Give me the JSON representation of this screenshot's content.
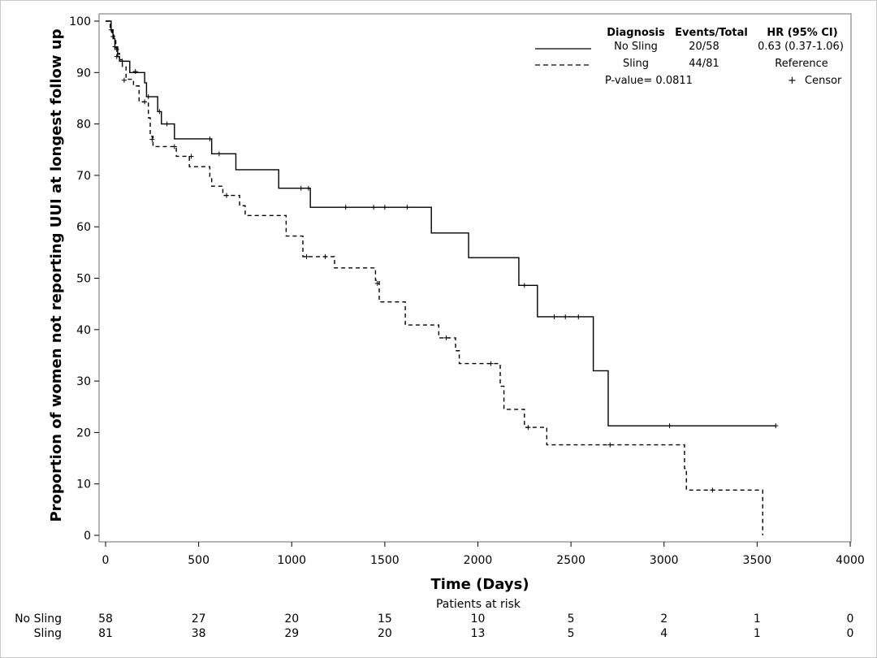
{
  "chart_data": {
    "type": "line",
    "subtype": "kaplan-meier step",
    "xlabel": "Time (Days)",
    "ylabel": "Proportion of women not reporting UUI at longest follow up",
    "xlim": [
      0,
      4000
    ],
    "ylim": [
      0,
      100
    ],
    "xticks": [
      0,
      500,
      1000,
      1500,
      2000,
      2500,
      3000,
      3500,
      4000
    ],
    "yticks": [
      0,
      10,
      20,
      30,
      40,
      50,
      60,
      70,
      80,
      90,
      100
    ],
    "grid": false,
    "legend": {
      "placement": "top-right",
      "headers": {
        "diagnosis": "Diagnosis",
        "events": "Events/Total",
        "hr": "HR (95% CI)"
      },
      "rows": [
        {
          "diagnosis": "No Sling",
          "events": "20/58",
          "hr": "0.63 (0.37-1.06)",
          "style": "solid"
        },
        {
          "diagnosis": "Sling",
          "events": "44/81",
          "hr": "Reference",
          "style": "dashed"
        }
      ],
      "pvalue": "P-value= 0.0811",
      "censor_symbol": "+",
      "censor_label": "Censor"
    },
    "series": [
      {
        "name": "No Sling",
        "style": "solid",
        "steps": [
          [
            0,
            100
          ],
          [
            30,
            98.3
          ],
          [
            40,
            96.6
          ],
          [
            50,
            94.8
          ],
          [
            65,
            93.1
          ],
          [
            75,
            92.2
          ],
          [
            130,
            90
          ],
          [
            210,
            88
          ],
          [
            220,
            85.3
          ],
          [
            280,
            82.4
          ],
          [
            300,
            80
          ],
          [
            370,
            77.1
          ],
          [
            570,
            74.2
          ],
          [
            700,
            71.1
          ],
          [
            930,
            67.5
          ],
          [
            1100,
            63.8
          ],
          [
            1750,
            58.8
          ],
          [
            1950,
            54
          ],
          [
            2220,
            48.6
          ],
          [
            2320,
            42.5
          ],
          [
            2620,
            32
          ],
          [
            2700,
            21.3
          ],
          [
            3600,
            21.3
          ]
        ],
        "censored": [
          [
            30,
            98.3
          ],
          [
            50,
            95
          ],
          [
            60,
            93.1
          ],
          [
            90,
            92.2
          ],
          [
            160,
            90.2
          ],
          [
            230,
            85.3
          ],
          [
            290,
            82.4
          ],
          [
            330,
            80
          ],
          [
            560,
            77.1
          ],
          [
            610,
            74.2
          ],
          [
            1050,
            67.5
          ],
          [
            1090,
            67.5
          ],
          [
            1290,
            63.8
          ],
          [
            1440,
            63.8
          ],
          [
            1500,
            63.8
          ],
          [
            1620,
            63.8
          ],
          [
            2250,
            48.6
          ],
          [
            2410,
            42.5
          ],
          [
            2470,
            42.5
          ],
          [
            2540,
            42.5
          ],
          [
            3030,
            21.3
          ],
          [
            3600,
            21.3
          ]
        ]
      },
      {
        "name": "Sling",
        "style": "dashed",
        "steps": [
          [
            0,
            100
          ],
          [
            25,
            98.8
          ],
          [
            35,
            97.5
          ],
          [
            45,
            96.2
          ],
          [
            55,
            95
          ],
          [
            65,
            93.7
          ],
          [
            75,
            92.5
          ],
          [
            90,
            91.2
          ],
          [
            110,
            88.7
          ],
          [
            150,
            87.4
          ],
          [
            180,
            84.3
          ],
          [
            230,
            81.2
          ],
          [
            240,
            77.6
          ],
          [
            255,
            75.6
          ],
          [
            380,
            73.7
          ],
          [
            450,
            71.7
          ],
          [
            560,
            69.8
          ],
          [
            570,
            67.9
          ],
          [
            630,
            66.1
          ],
          [
            720,
            64.1
          ],
          [
            750,
            62.2
          ],
          [
            970,
            58.2
          ],
          [
            1060,
            54.2
          ],
          [
            1230,
            52
          ],
          [
            1450,
            49.6
          ],
          [
            1470,
            45.4
          ],
          [
            1610,
            40.9
          ],
          [
            1790,
            38.4
          ],
          [
            1880,
            35.9
          ],
          [
            1900,
            33.4
          ],
          [
            2120,
            29
          ],
          [
            2140,
            24.5
          ],
          [
            2250,
            21
          ],
          [
            2370,
            17.6
          ],
          [
            3110,
            13
          ],
          [
            3120,
            8.8
          ],
          [
            3530,
            0
          ]
        ],
        "censored": [
          [
            40,
            97
          ],
          [
            60,
            94.5
          ],
          [
            100,
            88.5
          ],
          [
            210,
            84.3
          ],
          [
            250,
            77
          ],
          [
            370,
            75.6
          ],
          [
            460,
            73.7
          ],
          [
            650,
            66.1
          ],
          [
            1080,
            54.2
          ],
          [
            1180,
            54.2
          ],
          [
            1460,
            49
          ],
          [
            1830,
            38.4
          ],
          [
            2070,
            33.4
          ],
          [
            2270,
            21
          ],
          [
            2710,
            17.6
          ],
          [
            3260,
            8.8
          ]
        ]
      }
    ],
    "risk_table": {
      "title": "Patients at risk",
      "times": [
        0,
        500,
        1000,
        1500,
        2000,
        2500,
        3000,
        3500,
        4000
      ],
      "rows": [
        {
          "label": "No Sling",
          "values": [
            "58",
            "27",
            "20",
            "15",
            "10",
            "5",
            "2",
            "1",
            "0"
          ]
        },
        {
          "label": "Sling",
          "values": [
            "81",
            "38",
            "29",
            "20",
            "13",
            "5",
            "4",
            "1",
            "0"
          ]
        }
      ]
    }
  }
}
